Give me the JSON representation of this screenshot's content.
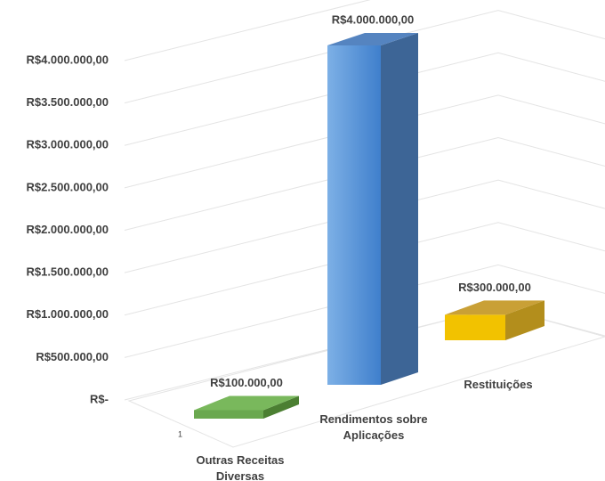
{
  "chart_data": {
    "type": "bar3d",
    "categories": [
      "Outras Receitas Diversas",
      "Rendimentos sobre Aplicações",
      "Restituições"
    ],
    "values": [
      100000,
      4000000,
      300000
    ],
    "value_labels": [
      "R$100.000,00",
      "R$4.000.000,00",
      "R$300.000,00"
    ],
    "colors": [
      "#6aa84f",
      "#5b9bd5",
      "#f2c200"
    ],
    "ylim": [
      0,
      4000000
    ],
    "yticks": [
      {
        "value": 0,
        "label": "R$-"
      },
      {
        "value": 500000,
        "label": "R$500.000,00"
      },
      {
        "value": 1000000,
        "label": "R$1.000.000,00"
      },
      {
        "value": 1500000,
        "label": "R$1.500.000,00"
      },
      {
        "value": 2000000,
        "label": "R$2.000.000,00"
      },
      {
        "value": 2500000,
        "label": "R$2.500.000,00"
      },
      {
        "value": 3000000,
        "label": "R$3.000.000,00"
      },
      {
        "value": 3500000,
        "label": "R$3.500.000,00"
      },
      {
        "value": 4000000,
        "label": "R$4.000.000,00"
      }
    ],
    "depth_label": "1",
    "grid": true
  }
}
